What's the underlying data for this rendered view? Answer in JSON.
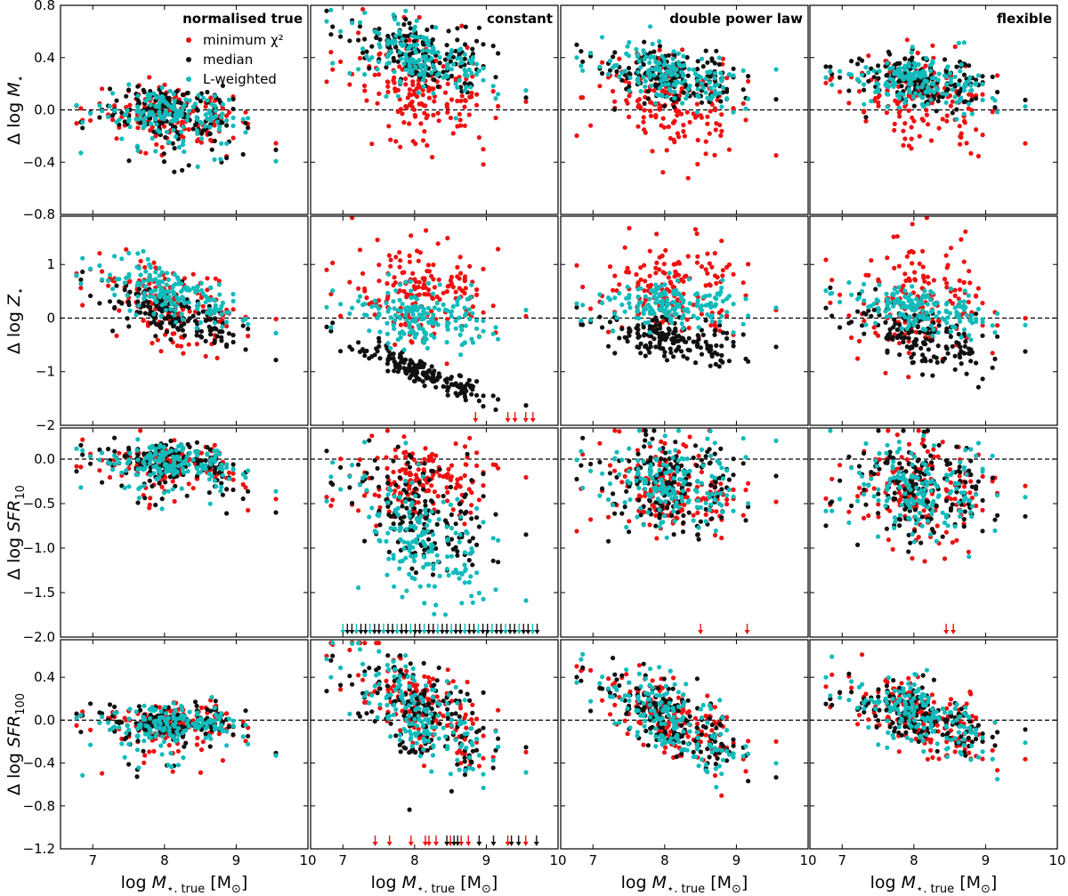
{
  "chart_data": {
    "type": "scatter",
    "layout": "4x4 grid",
    "columns": [
      "normalised true",
      "constant",
      "double power law",
      "flexible"
    ],
    "xlabel": "log M⋆, true [M⊙]",
    "xlim": [
      6.55,
      10
    ],
    "xticks": [
      7,
      8,
      9,
      10
    ],
    "rows": [
      {
        "id": "mass",
        "ylabel": "Δ log M⋆",
        "ylim": [
          -0.8,
          0.8
        ],
        "yticks": [
          -0.8,
          -0.4,
          0.0,
          0.4,
          0.8
        ],
        "ytick_labels": [
          "−0.8",
          "−0.4",
          "0.0",
          "0.4",
          "0.8"
        ]
      },
      {
        "id": "metal",
        "ylabel": "Δ log Z⋆",
        "ylim": [
          -2,
          1.9
        ],
        "yticks": [
          -2,
          -1,
          0,
          1
        ],
        "ytick_labels": [
          "−2",
          "−1",
          "0",
          "1"
        ]
      },
      {
        "id": "sfr10",
        "ylabel": "Δ log SFR10",
        "ylim": [
          -2.0,
          0.35
        ],
        "yticks": [
          -2.0,
          -1.5,
          -1.0,
          -0.5,
          0.0
        ],
        "ytick_labels": [
          "−2.0",
          "−1.5",
          "−1.0",
          "−0.5",
          "0.0"
        ]
      },
      {
        "id": "sfr100",
        "ylabel": "Δ log SFR100",
        "ylim": [
          -1.2,
          0.75
        ],
        "yticks": [
          -1.2,
          -0.8,
          -0.4,
          0.0,
          0.4
        ],
        "ytick_labels": [
          "−1.2",
          "−0.8",
          "−0.4",
          "0.0",
          "0.4"
        ]
      }
    ],
    "xtick_labels": [
      "7",
      "8",
      "9",
      "10"
    ],
    "reference_line": {
      "y": 0,
      "style": "dashed"
    },
    "legend": {
      "placement": "top-right of first panel",
      "entries": [
        {
          "label": "minimum χ²",
          "color": "#ee1111"
        },
        {
          "label": "median",
          "color": "#111111"
        },
        {
          "label": "L-weighted",
          "color": "#11bbbb"
        }
      ]
    },
    "series": [
      {
        "name": "minimum χ²",
        "color": "#ee1111"
      },
      {
        "name": "median",
        "color": "#111111"
      },
      {
        "name": "L-weighted",
        "color": "#11bbbb"
      }
    ],
    "note": "Each panel shows ~180 galaxies per series; upper limits drawn as downward arrows at bottom of constant SFR10/SFR100 and double power law / flexible SFR10 panels."
  },
  "labels": {
    "ylabel_mass_prefix": "Δ log ",
    "ylabel_mass_sym": "M",
    "ylabel_metal_sym": "Z",
    "ylabel_sfr_sym": "SFR",
    "star_sub": "⋆",
    "sub10": "10",
    "sub100": "100",
    "xlabel_prefix": "log ",
    "xlabel_sym": "M",
    "xlabel_sub": "⋆, true",
    "xlabel_unit_open": " [M",
    "xlabel_unit_sub": "⊙",
    "xlabel_unit_close": "]"
  }
}
